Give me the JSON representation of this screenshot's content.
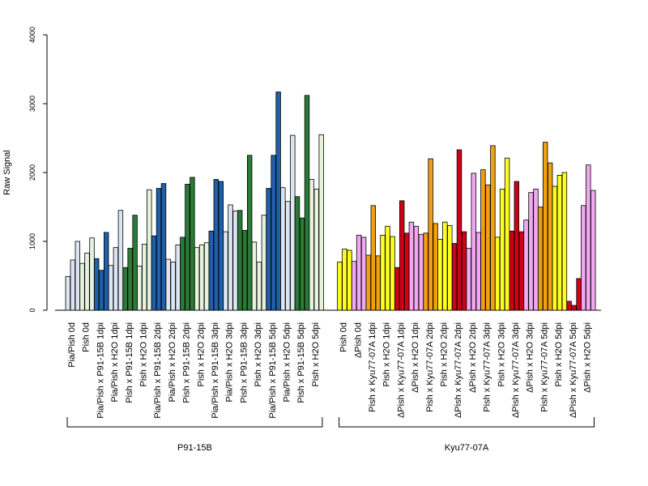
{
  "chart_data": {
    "type": "bar",
    "ylabel": "Raw Signal",
    "ylim": [
      0,
      4000
    ],
    "yticks": [
      "0",
      "1000",
      "2000",
      "3000",
      "4000"
    ],
    "categories": [
      "Pia/Pish 0d",
      "Pish 0d",
      "Pia/Pish x P91-15B 1dpi",
      "Pia/Pish x H2O 1dpi",
      "Pish x P91-15B 1dpi",
      "Pish x H2O 1dpi",
      "Pia/Pish x P91-15B 2dpi",
      "Pia/Pish x H2O 2dpi",
      "Pish x P91-15B 2dpi",
      "Pish x H2O 2dpi",
      "Pia/Pish x P91-15B 3dpi",
      "Pia/Pish x H2O 3dpi",
      "Pish x P91-15B 3dpi",
      "Pish x H2O 3dpi",
      "Pia/Pish x P91-15B 5dpi",
      "Pia/Pish x H2O 5dpi",
      "Pish x P91-15B 5dpi",
      "Pish x H2O 5dpi",
      "Pish 0d",
      "ΔPish 0d",
      "Pish x Kyu77-07A 1dpi",
      "Pish x H2O 1dpi",
      "ΔPish x Kyu77-07A 1dpi",
      "ΔPish x H2O 1dpi",
      "Pish x Kyu77-07A 2dpi",
      "Pish x H2O 2dpi",
      "ΔPish x Kyu77-07A 2dpi",
      "ΔPish x H2O 2dpi",
      "Pish x Kyu77-07A 3dpi",
      "Pish x H2O 3dpi",
      "ΔPish x Kyu77-07A 3dpi",
      "ΔPish x H2O 3dpi",
      "Pish x Kyu77-07A 5dpi",
      "Pish x H2O 5dpi",
      "ΔPish x Kyu77-07A 5dpi",
      "ΔPish x H2O 5dpi"
    ],
    "colors": [
      "#dce6f2",
      "#e6f2dc",
      "#2060a8",
      "#dce6f2",
      "#2a7a36",
      "#e6f2dc",
      "#2060a8",
      "#dce6f2",
      "#2a7a36",
      "#e6f2dc",
      "#2060a8",
      "#dce6f2",
      "#2a7a36",
      "#e6f2dc",
      "#2060a8",
      "#dce6f2",
      "#2a7a36",
      "#e6f2dc",
      "#ffff22",
      "#f0a8f0",
      "#f0a010",
      "#ffff22",
      "#d00018",
      "#f0a8f0",
      "#f0a010",
      "#ffff22",
      "#d00018",
      "#f0a8f0",
      "#f0a010",
      "#ffff22",
      "#d00018",
      "#f0a8f0",
      "#f0a010",
      "#ffff22",
      "#d00018",
      "#f0a8f0"
    ],
    "values": [
      [
        490,
        730,
        1000
      ],
      [
        680,
        830,
        1050
      ],
      [
        750,
        580,
        1130
      ],
      [
        650,
        910,
        1450
      ],
      [
        620,
        900,
        1380
      ],
      [
        640,
        960,
        1750
      ],
      [
        1080,
        1770,
        1840
      ],
      [
        740,
        700,
        950
      ],
      [
        1060,
        1830,
        1930
      ],
      [
        910,
        950,
        980
      ],
      [
        1150,
        1900,
        1870
      ],
      [
        1140,
        1530,
        1440
      ],
      [
        1450,
        1160,
        2250
      ],
      [
        990,
        700,
        1380
      ],
      [
        1770,
        2250,
        3170
      ],
      [
        1780,
        1580,
        2540
      ],
      [
        1650,
        1340,
        3120
      ],
      [
        1900,
        1760,
        2550
      ],
      [
        700,
        890,
        870
      ],
      [
        710,
        1090,
        1060
      ],
      [
        800,
        1520,
        790
      ],
      [
        1090,
        1220,
        1070
      ],
      [
        620,
        1590,
        1120
      ],
      [
        1280,
        1220,
        1100
      ],
      [
        1120,
        2200,
        1260
      ],
      [
        1030,
        1280,
        1230
      ],
      [
        970,
        2330,
        1140
      ],
      [
        900,
        1990,
        1130
      ],
      [
        2040,
        1820,
        2390
      ],
      [
        1060,
        1760,
        2210
      ],
      [
        1150,
        1870,
        1140
      ],
      [
        1310,
        1710,
        1760
      ],
      [
        1500,
        2440,
        2140
      ],
      [
        1800,
        1960,
        2000
      ],
      [
        130,
        70,
        460
      ],
      [
        1520,
        2110,
        1740
      ]
    ],
    "groups": [
      {
        "name": "P91-15B",
        "from": 0,
        "to": 17
      },
      {
        "name": "Kyu77-07A",
        "from": 18,
        "to": 35
      }
    ]
  }
}
